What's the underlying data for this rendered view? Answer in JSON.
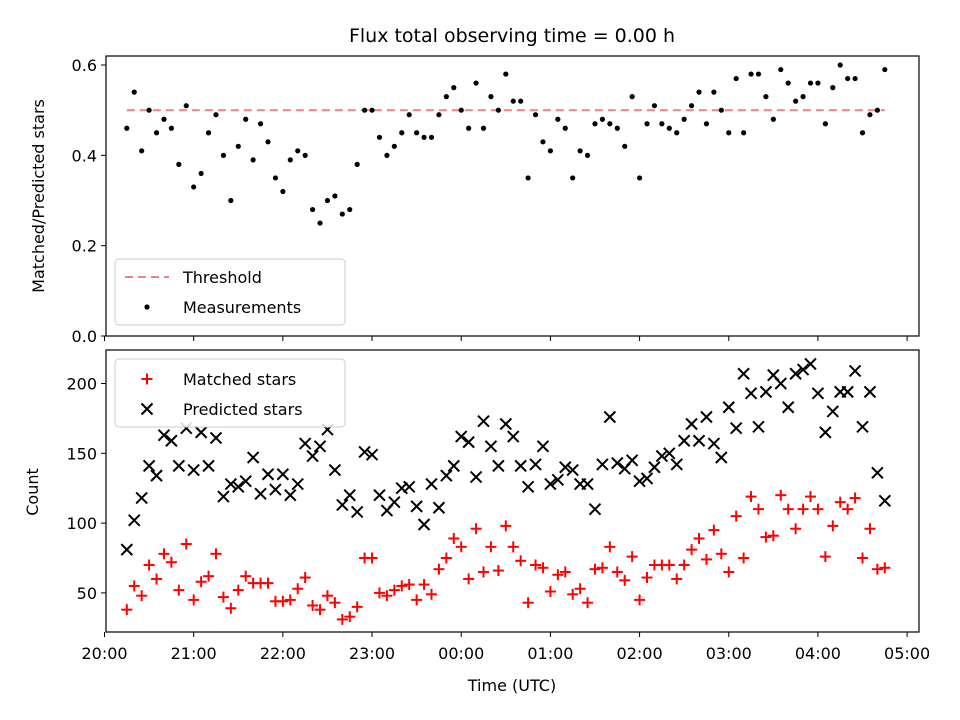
{
  "chart_data": [
    {
      "type": "scatter",
      "title": "Flux total observing time = 0.00 h",
      "xlabel": "",
      "ylabel": "Matched/Predicted stars",
      "xlim": [
        "20:01",
        "05:08"
      ],
      "ylim": [
        0,
        0.62
      ],
      "yticks": [
        "0.0",
        "0.2",
        "0.4",
        "0.6"
      ],
      "legend_position": "lower-left",
      "grid": false,
      "threshold": {
        "name": "Threshold",
        "value": 0.5,
        "style": "dashed",
        "color": "#f08080"
      },
      "series": [
        {
          "name": "Measurements",
          "color": "#000000",
          "marker": "dot",
          "x": [
            "20:15",
            "20:20",
            "20:25",
            "20:30",
            "20:35",
            "20:40",
            "20:45",
            "20:50",
            "20:55",
            "21:00",
            "21:05",
            "21:10",
            "21:15",
            "21:20",
            "21:25",
            "21:30",
            "21:35",
            "21:40",
            "21:45",
            "21:50",
            "21:55",
            "22:00",
            "22:05",
            "22:10",
            "22:15",
            "22:20",
            "22:25",
            "22:30",
            "22:35",
            "22:40",
            "22:45",
            "22:50",
            "22:55",
            "23:00",
            "23:05",
            "23:10",
            "23:15",
            "23:20",
            "23:25",
            "23:30",
            "23:35",
            "23:40",
            "23:45",
            "23:50",
            "23:55",
            "00:00",
            "00:05",
            "00:10",
            "00:15",
            "00:20",
            "00:25",
            "00:30",
            "00:35",
            "00:40",
            "00:45",
            "00:50",
            "00:55",
            "01:00",
            "01:05",
            "01:10",
            "01:15",
            "01:20",
            "01:25",
            "01:30",
            "01:35",
            "01:40",
            "01:45",
            "01:50",
            "01:55",
            "02:00",
            "02:05",
            "02:10",
            "02:15",
            "02:20",
            "02:25",
            "02:30",
            "02:35",
            "02:40",
            "02:45",
            "02:50",
            "02:55",
            "03:00",
            "03:05",
            "03:10",
            "03:15",
            "03:20",
            "03:25",
            "03:30",
            "03:35",
            "03:40",
            "03:45",
            "03:50",
            "03:55",
            "04:00",
            "04:05",
            "04:10",
            "04:15",
            "04:20",
            "04:25",
            "04:30",
            "04:35",
            "04:40",
            "04:45"
          ],
          "y": [
            0.46,
            0.54,
            0.41,
            0.5,
            0.45,
            0.48,
            0.46,
            0.38,
            0.51,
            0.33,
            0.36,
            0.45,
            0.49,
            0.4,
            0.3,
            0.42,
            0.48,
            0.39,
            0.47,
            0.43,
            0.35,
            0.32,
            0.39,
            0.41,
            0.4,
            0.28,
            0.25,
            0.3,
            0.31,
            0.27,
            0.28,
            0.38,
            0.5,
            0.5,
            0.44,
            0.4,
            0.42,
            0.45,
            0.49,
            0.45,
            0.44,
            0.44,
            0.49,
            0.53,
            0.55,
            0.5,
            0.46,
            0.56,
            0.46,
            0.53,
            0.5,
            0.58,
            0.52,
            0.52,
            0.35,
            0.49,
            0.43,
            0.41,
            0.48,
            0.46,
            0.35,
            0.41,
            0.4,
            0.47,
            0.48,
            0.47,
            0.46,
            0.42,
            0.53,
            0.35,
            0.47,
            0.51,
            0.47,
            0.46,
            0.45,
            0.48,
            0.51,
            0.54,
            0.47,
            0.54,
            0.5,
            0.45,
            0.57,
            0.45,
            0.58,
            0.58,
            0.53,
            0.48,
            0.59,
            0.56,
            0.52,
            0.53,
            0.56,
            0.56,
            0.47,
            0.55,
            0.6,
            0.57,
            0.57,
            0.45,
            0.49,
            0.5,
            0.59
          ]
        }
      ]
    },
    {
      "type": "scatter",
      "title": "",
      "xlabel": "Time (UTC)",
      "ylabel": "Count",
      "xlim": [
        "20:01",
        "05:08"
      ],
      "ylim": [
        22,
        224
      ],
      "yticks": [
        "50",
        "100",
        "150",
        "200"
      ],
      "xticks": [
        "20:00",
        "21:00",
        "22:00",
        "23:00",
        "00:00",
        "01:00",
        "02:00",
        "03:00",
        "04:00",
        "05:00"
      ],
      "legend_position": "upper-left",
      "grid": false,
      "series": [
        {
          "name": "Matched stars",
          "color": "#ff0000",
          "marker": "plus",
          "x": [
            "20:15",
            "20:20",
            "20:25",
            "20:30",
            "20:35",
            "20:40",
            "20:45",
            "20:50",
            "20:55",
            "21:00",
            "21:05",
            "21:10",
            "21:15",
            "21:20",
            "21:25",
            "21:30",
            "21:35",
            "21:40",
            "21:45",
            "21:50",
            "21:55",
            "22:00",
            "22:05",
            "22:10",
            "22:15",
            "22:20",
            "22:25",
            "22:30",
            "22:35",
            "22:40",
            "22:45",
            "22:50",
            "22:55",
            "23:00",
            "23:05",
            "23:10",
            "23:15",
            "23:20",
            "23:25",
            "23:30",
            "23:35",
            "23:40",
            "23:45",
            "23:50",
            "23:55",
            "00:00",
            "00:05",
            "00:10",
            "00:15",
            "00:20",
            "00:25",
            "00:30",
            "00:35",
            "00:40",
            "00:45",
            "00:50",
            "00:55",
            "01:00",
            "01:05",
            "01:10",
            "01:15",
            "01:20",
            "01:25",
            "01:30",
            "01:35",
            "01:40",
            "01:45",
            "01:50",
            "01:55",
            "02:00",
            "02:05",
            "02:10",
            "02:15",
            "02:20",
            "02:25",
            "02:30",
            "02:35",
            "02:40",
            "02:45",
            "02:50",
            "02:55",
            "03:00",
            "03:05",
            "03:10",
            "03:15",
            "03:20",
            "03:25",
            "03:30",
            "03:35",
            "03:40",
            "03:45",
            "03:50",
            "03:55",
            "04:00",
            "04:05",
            "04:10",
            "04:15",
            "04:20",
            "04:25",
            "04:30",
            "04:35",
            "04:40",
            "04:45"
          ],
          "y": [
            38,
            55,
            48,
            70,
            60,
            78,
            72,
            52,
            85,
            45,
            58,
            62,
            78,
            47,
            39,
            52,
            62,
            57,
            57,
            57,
            44,
            44,
            45,
            53,
            61,
            41,
            38,
            48,
            43,
            31,
            33,
            40,
            75,
            75,
            50,
            48,
            52,
            55,
            56,
            45,
            56,
            49,
            67,
            75,
            89,
            83,
            60,
            96,
            65,
            83,
            66,
            98,
            83,
            73,
            43,
            70,
            68,
            51,
            63,
            65,
            49,
            53,
            43,
            67,
            68,
            83,
            65,
            59,
            76,
            45,
            61,
            70,
            70,
            70,
            60,
            70,
            81,
            89,
            74,
            95,
            78,
            65,
            105,
            75,
            119,
            110,
            90,
            91,
            120,
            110,
            96,
            110,
            119,
            110,
            76,
            98,
            115,
            110,
            118,
            75,
            96,
            67,
            68
          ]
        },
        {
          "name": "Predicted stars",
          "color": "#000000",
          "marker": "x",
          "x": [
            "20:15",
            "20:20",
            "20:25",
            "20:30",
            "20:35",
            "20:40",
            "20:45",
            "20:50",
            "20:55",
            "21:00",
            "21:05",
            "21:10",
            "21:15",
            "21:20",
            "21:25",
            "21:30",
            "21:35",
            "21:40",
            "21:45",
            "21:50",
            "21:55",
            "22:00",
            "22:05",
            "22:10",
            "22:15",
            "22:20",
            "22:25",
            "22:30",
            "22:35",
            "22:40",
            "22:45",
            "22:50",
            "22:55",
            "23:00",
            "23:05",
            "23:10",
            "23:15",
            "23:20",
            "23:25",
            "23:30",
            "23:35",
            "23:40",
            "23:45",
            "23:50",
            "23:55",
            "00:00",
            "00:05",
            "00:10",
            "00:15",
            "00:20",
            "00:25",
            "00:30",
            "00:35",
            "00:40",
            "00:45",
            "00:50",
            "00:55",
            "01:00",
            "01:05",
            "01:10",
            "01:15",
            "01:20",
            "01:25",
            "01:30",
            "01:35",
            "01:40",
            "01:45",
            "01:50",
            "01:55",
            "02:00",
            "02:05",
            "02:10",
            "02:15",
            "02:20",
            "02:25",
            "02:30",
            "02:35",
            "02:40",
            "02:45",
            "02:50",
            "02:55",
            "03:00",
            "03:05",
            "03:10",
            "03:15",
            "03:20",
            "03:25",
            "03:30",
            "03:35",
            "03:40",
            "03:45",
            "03:50",
            "03:55",
            "04:00",
            "04:05",
            "04:10",
            "04:15",
            "04:20",
            "04:25",
            "04:30",
            "04:35",
            "04:40",
            "04:45"
          ],
          "y": [
            81,
            102,
            118,
            141,
            134,
            163,
            159,
            141,
            168,
            138,
            165,
            141,
            161,
            119,
            128,
            126,
            130,
            147,
            121,
            135,
            124,
            135,
            120,
            128,
            157,
            148,
            155,
            167,
            138,
            113,
            120,
            108,
            151,
            149,
            120,
            109,
            115,
            125,
            126,
            112,
            99,
            128,
            111,
            134,
            141,
            162,
            158,
            133,
            173,
            155,
            141,
            171,
            162,
            141,
            126,
            142,
            155,
            128,
            131,
            140,
            138,
            128,
            128,
            110,
            142,
            176,
            143,
            139,
            145,
            130,
            132,
            140,
            148,
            150,
            142,
            159,
            171,
            159,
            176,
            157,
            147,
            183,
            168,
            207,
            193,
            169,
            194,
            206,
            200,
            183,
            207,
            210,
            214,
            193,
            165,
            180,
            194,
            194,
            209,
            169,
            194,
            136,
            116
          ]
        }
      ]
    }
  ]
}
